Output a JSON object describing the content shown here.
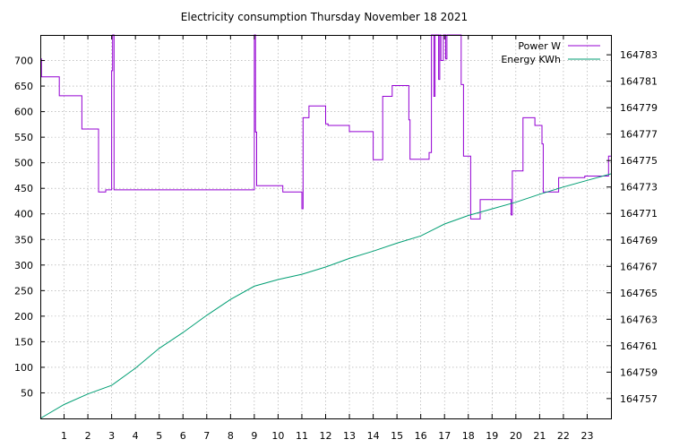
{
  "chart_data": {
    "type": "line",
    "title": "Electricity consumption Thursday November 18 2021",
    "grid": true,
    "legend_position": "top-right",
    "x": {
      "ticks": [
        "1",
        "2",
        "3",
        "4",
        "5",
        "6",
        "7",
        "8",
        "9",
        "10",
        "11",
        "12",
        "13",
        "14",
        "15",
        "16",
        "17",
        "18",
        "19",
        "20",
        "21",
        "22",
        "23"
      ],
      "range": [
        0,
        24
      ]
    },
    "y_left": {
      "ticks": [
        "50",
        "100",
        "150",
        "200",
        "250",
        "300",
        "350",
        "400",
        "450",
        "500",
        "550",
        "600",
        "650",
        "700"
      ],
      "range": [
        0,
        750
      ]
    },
    "y_right": {
      "ticks": [
        "164757",
        "164759",
        "164761",
        "164763",
        "164765",
        "164767",
        "164769",
        "164771",
        "164773",
        "164775",
        "164777",
        "164779",
        "164781",
        "164783"
      ],
      "range": [
        164755.5,
        164784.5
      ]
    },
    "series": [
      {
        "name": "Power W",
        "axis": "left",
        "color": "#9400d3",
        "step": true,
        "points": [
          [
            0.0,
            703
          ],
          [
            0.05,
            668
          ],
          [
            0.8,
            631
          ],
          [
            1.75,
            566
          ],
          [
            2.45,
            443
          ],
          [
            2.75,
            447
          ],
          [
            3.0,
            680
          ],
          [
            3.04,
            760
          ],
          [
            3.08,
            750
          ],
          [
            3.1,
            447
          ],
          [
            9.0,
            760
          ],
          [
            9.05,
            560
          ],
          [
            9.1,
            455
          ],
          [
            10.2,
            443
          ],
          [
            11.0,
            410
          ],
          [
            11.05,
            588
          ],
          [
            11.3,
            611
          ],
          [
            12.0,
            576
          ],
          [
            12.1,
            573
          ],
          [
            13.0,
            561
          ],
          [
            14.0,
            506
          ],
          [
            14.4,
            630
          ],
          [
            14.8,
            651
          ],
          [
            15.5,
            584
          ],
          [
            15.55,
            507
          ],
          [
            16.35,
            520
          ],
          [
            16.45,
            760
          ],
          [
            16.55,
            630
          ],
          [
            16.6,
            760
          ],
          [
            16.75,
            663
          ],
          [
            16.8,
            760
          ],
          [
            16.85,
            700
          ],
          [
            16.95,
            760
          ],
          [
            17.05,
            703
          ],
          [
            17.1,
            760
          ],
          [
            17.5,
            760
          ],
          [
            17.7,
            653
          ],
          [
            17.8,
            513
          ],
          [
            18.1,
            390
          ],
          [
            18.5,
            428
          ],
          [
            19.8,
            398
          ],
          [
            19.85,
            484
          ],
          [
            20.3,
            588
          ],
          [
            20.8,
            573
          ],
          [
            21.1,
            537
          ],
          [
            21.15,
            443
          ],
          [
            21.8,
            471
          ],
          [
            22.9,
            474
          ],
          [
            23.9,
            513
          ],
          [
            24.0,
            513
          ]
        ]
      },
      {
        "name": "Energy KWh",
        "axis": "right",
        "color": "#009e73",
        "step": false,
        "points": [
          [
            0,
            164755.5
          ],
          [
            1,
            164756.55
          ],
          [
            2,
            164757.35
          ],
          [
            3,
            164758.0
          ],
          [
            4,
            164759.3
          ],
          [
            5,
            164760.8
          ],
          [
            6,
            164762.0
          ],
          [
            7,
            164763.3
          ],
          [
            8,
            164764.5
          ],
          [
            9,
            164765.5
          ],
          [
            10,
            164766.0
          ],
          [
            11,
            164766.4
          ],
          [
            12,
            164766.95
          ],
          [
            13,
            164767.6
          ],
          [
            14,
            164768.15
          ],
          [
            15,
            164768.75
          ],
          [
            16,
            164769.3
          ],
          [
            17,
            164770.2
          ],
          [
            18,
            164770.85
          ],
          [
            19,
            164771.35
          ],
          [
            20,
            164771.85
          ],
          [
            21,
            164772.45
          ],
          [
            22,
            164773.0
          ],
          [
            23,
            164773.5
          ],
          [
            24,
            164774.0
          ]
        ]
      }
    ]
  }
}
